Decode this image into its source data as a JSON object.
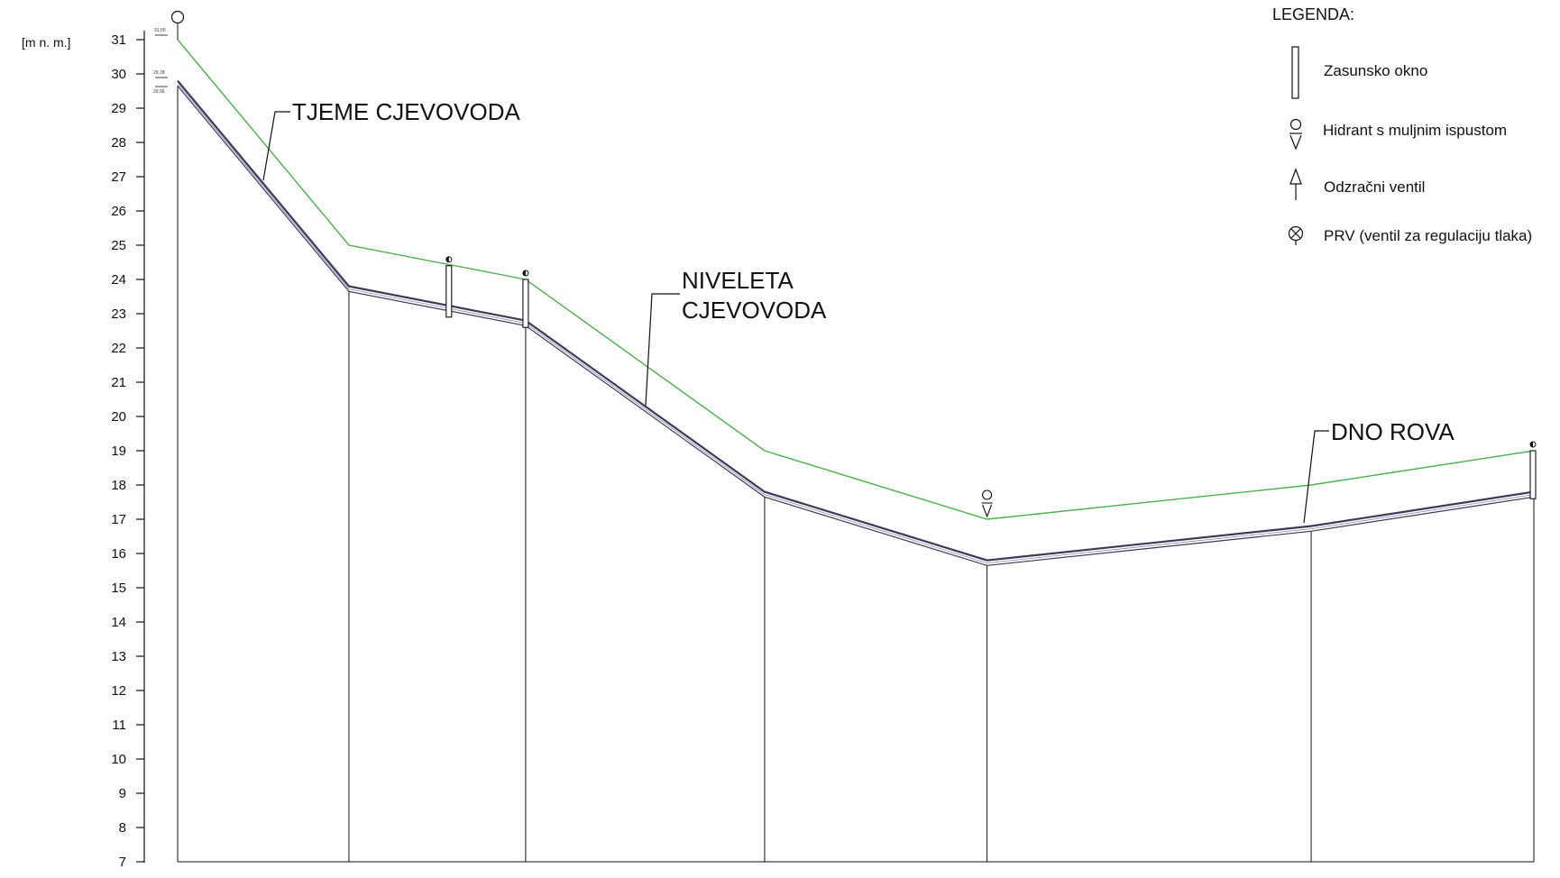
{
  "chart_data": {
    "type": "line",
    "unit_label": "[m n. m.]",
    "y_ticks": [
      7,
      8,
      9,
      10,
      11,
      12,
      13,
      14,
      15,
      16,
      17,
      18,
      19,
      20,
      21,
      22,
      23,
      24,
      25,
      26,
      27,
      28,
      29,
      30,
      31
    ],
    "ylim": [
      7,
      31
    ],
    "grid": false,
    "stations": [
      0,
      1,
      2,
      3,
      4,
      5,
      6
    ],
    "station_x_fraction": [
      0,
      0.1263,
      0.2566,
      0.4328,
      0.5968,
      0.8358,
      1.0
    ],
    "series": [
      {
        "name": "TJEME CJEVOVODA",
        "color": "#4caf50",
        "values": [
          31.0,
          25.0,
          24.0,
          19.0,
          17.0,
          18.0,
          19.0
        ]
      },
      {
        "name": "NIVELETA CJEVOVODA",
        "color": "#3a3a5a",
        "values": [
          29.8,
          23.8,
          22.8,
          17.8,
          15.8,
          16.8,
          17.8
        ]
      },
      {
        "name": "DNO ROVA",
        "color": "#3a3a5a",
        "values": [
          29.65,
          23.65,
          22.65,
          17.65,
          15.65,
          16.65,
          17.65
        ]
      }
    ],
    "annotations": [
      "TJEME CJEVOVODA",
      "NIVELETA CJEVOVODA",
      "DNO ROVA"
    ],
    "elevation_notes": [
      "31,00",
      "29,78",
      "29,66"
    ]
  },
  "legend": {
    "title": "LEGENDA:",
    "items": [
      {
        "icon": "valve-chamber-icon",
        "label": "Zasunsko okno"
      },
      {
        "icon": "hydrant-icon",
        "label": "Hidrant s muljnim ispustom"
      },
      {
        "icon": "air-valve-icon",
        "label": "Odzračni ventil"
      },
      {
        "icon": "prv-icon",
        "label": "PRV (ventil za regulaciju tlaka)"
      }
    ]
  },
  "labels": {
    "tjeme": "TJEME CJEVOVODA",
    "niveleta_1": "NIVELETA",
    "niveleta_2": "CJEVOVODA",
    "dno": "DNO ROVA"
  },
  "colors": {
    "crown_line": "#4caf50",
    "pipe_line": "#3a3a5a",
    "ink": "#111111"
  }
}
